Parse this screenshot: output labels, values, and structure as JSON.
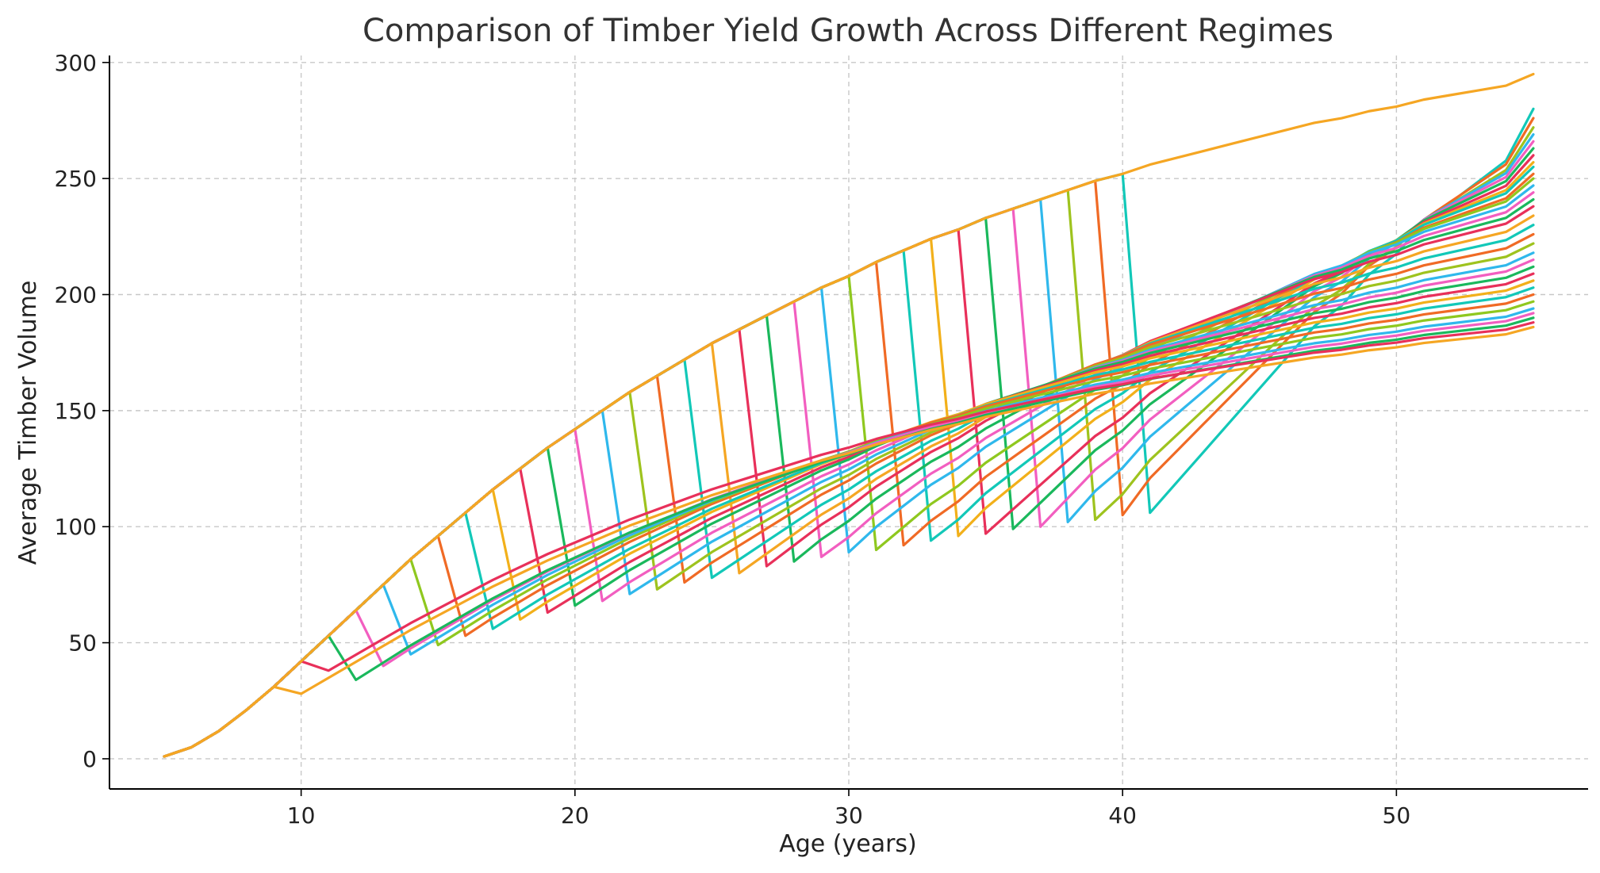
{
  "chart_data": {
    "type": "line",
    "title": "Comparison of Timber Yield Growth Across Different Regimes",
    "xlabel": "Age (years)",
    "ylabel": "Average Timber Volume",
    "xlim": [
      3,
      57
    ],
    "ylim": [
      -13,
      303
    ],
    "xticks": [
      10,
      20,
      30,
      40,
      50
    ],
    "yticks": [
      0,
      50,
      100,
      150,
      200,
      250,
      300
    ],
    "grid": true,
    "legend": "none",
    "base_curve": {
      "x": [
        5,
        6,
        7,
        8,
        9,
        10,
        11,
        12,
        13,
        14,
        15,
        16,
        17,
        18,
        19,
        20,
        21,
        22,
        23,
        24,
        25,
        26,
        27,
        28,
        29,
        30,
        31,
        32,
        33,
        34,
        35,
        36,
        37,
        38,
        39,
        40,
        41,
        42,
        43,
        44,
        45,
        46,
        47,
        48,
        49,
        50,
        51,
        52,
        53,
        54,
        55
      ],
      "y": [
        1,
        5,
        12,
        21,
        31,
        42,
        53,
        64,
        75,
        86,
        96,
        106,
        116,
        125,
        134,
        142,
        150,
        158,
        165,
        172,
        179,
        185,
        191,
        197,
        203,
        208,
        214,
        219,
        224,
        228,
        233,
        237,
        241,
        245,
        249,
        252,
        256,
        259,
        262,
        265,
        268,
        271,
        274,
        276,
        279,
        281,
        284,
        286,
        288,
        290,
        295
      ]
    },
    "regimes": [
      {
        "thin_age": 9,
        "post_thin": 28,
        "end": 186
      },
      {
        "thin_age": 10,
        "post_thin": 38,
        "end": 188
      },
      {
        "thin_age": 11,
        "post_thin": 34,
        "end": 190
      },
      {
        "thin_age": 12,
        "post_thin": 40,
        "end": 192
      },
      {
        "thin_age": 13,
        "post_thin": 45,
        "end": 194
      },
      {
        "thin_age": 14,
        "post_thin": 49,
        "end": 197
      },
      {
        "thin_age": 15,
        "post_thin": 53,
        "end": 200
      },
      {
        "thin_age": 16,
        "post_thin": 56,
        "end": 203
      },
      {
        "thin_age": 17,
        "post_thin": 60,
        "end": 206
      },
      {
        "thin_age": 18,
        "post_thin": 63,
        "end": 209
      },
      {
        "thin_age": 19,
        "post_thin": 66,
        "end": 212
      },
      {
        "thin_age": 20,
        "post_thin": 68,
        "end": 215
      },
      {
        "thin_age": 21,
        "post_thin": 71,
        "end": 218
      },
      {
        "thin_age": 22,
        "post_thin": 73,
        "end": 222
      },
      {
        "thin_age": 23,
        "post_thin": 76,
        "end": 226
      },
      {
        "thin_age": 24,
        "post_thin": 78,
        "end": 230
      },
      {
        "thin_age": 25,
        "post_thin": 80,
        "end": 234
      },
      {
        "thin_age": 26,
        "post_thin": 83,
        "end": 238
      },
      {
        "thin_age": 27,
        "post_thin": 85,
        "end": 241
      },
      {
        "thin_age": 28,
        "post_thin": 87,
        "end": 244
      },
      {
        "thin_age": 29,
        "post_thin": 89,
        "end": 247
      },
      {
        "thin_age": 30,
        "post_thin": 90,
        "end": 250
      },
      {
        "thin_age": 31,
        "post_thin": 92,
        "end": 252
      },
      {
        "thin_age": 32,
        "post_thin": 94,
        "end": 255
      },
      {
        "thin_age": 33,
        "post_thin": 96,
        "end": 257
      },
      {
        "thin_age": 34,
        "post_thin": 97,
        "end": 260
      },
      {
        "thin_age": 35,
        "post_thin": 99,
        "end": 263
      },
      {
        "thin_age": 36,
        "post_thin": 100,
        "end": 266
      },
      {
        "thin_age": 37,
        "post_thin": 102,
        "end": 269
      },
      {
        "thin_age": 38,
        "post_thin": 103,
        "end": 272
      },
      {
        "thin_age": 39,
        "post_thin": 105,
        "end": 276
      },
      {
        "thin_age": 40,
        "post_thin": 106,
        "end": 280
      }
    ],
    "palette": [
      "#f5a623",
      "#e8305a",
      "#1ab85c",
      "#f25ec0",
      "#2fb8ec",
      "#8fc81f",
      "#f06a25",
      "#12c8b8",
      "#f2b01a",
      "#e8305a",
      "#1ab85c",
      "#f25ec0",
      "#2fb8ec",
      "#9ec31e",
      "#f06a25",
      "#12c8b8"
    ]
  }
}
